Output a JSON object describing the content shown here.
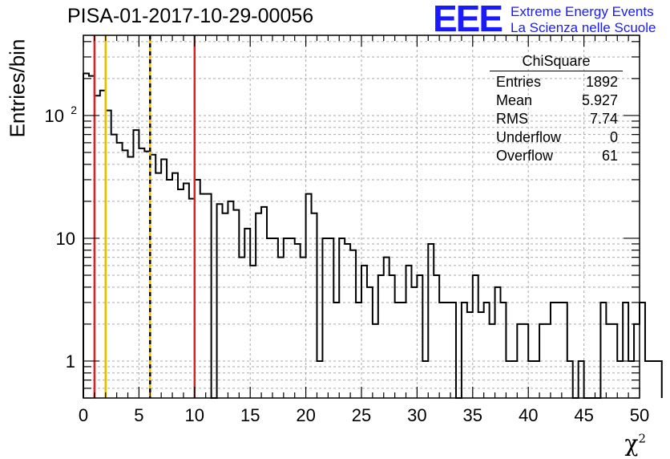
{
  "title": "PISA-01-2017-10-29-00056",
  "logo": {
    "mark": "EEE",
    "line1": "Extreme Energy Events",
    "line2": "La Scienza nelle Scuole"
  },
  "stats": {
    "title": "ChiSquare",
    "rows": [
      {
        "label": "Entries",
        "value": "1892"
      },
      {
        "label": "Mean",
        "value": "5.927"
      },
      {
        "label": "RMS",
        "value": "7.74"
      },
      {
        "label": "Underflow",
        "value": "0"
      },
      {
        "label": "Overflow",
        "value": "61"
      }
    ]
  },
  "chart_data": {
    "type": "histogram",
    "title": "PISA-01-2017-10-29-00056",
    "xlabel": "χ²",
    "ylabel": "Entries/bin",
    "xlim": [
      0,
      50
    ],
    "ylim": [
      0.5,
      450
    ],
    "yscale": "log",
    "bin_width": 0.5,
    "grid": true,
    "x_ticks": [
      "0",
      "5",
      "10",
      "15",
      "20",
      "25",
      "30",
      "35",
      "40",
      "45",
      "50"
    ],
    "y_ticks": [
      {
        "value": 1,
        "label": "1"
      },
      {
        "value": 10,
        "label": "10"
      },
      {
        "value": 100,
        "label": "10",
        "exp": "2"
      }
    ],
    "values": [
      220,
      210,
      145,
      160,
      110,
      70,
      60,
      52,
      46,
      76,
      54,
      51,
      48,
      34,
      44,
      30,
      34,
      25,
      28,
      21,
      30,
      23,
      23,
      0.5,
      19,
      16,
      20,
      17,
      7,
      12,
      6,
      16,
      18,
      10,
      10,
      7,
      10,
      10,
      9,
      7,
      23,
      16,
      1,
      10,
      10,
      3,
      10,
      9,
      8,
      3,
      6,
      4,
      2,
      5,
      7,
      5,
      3,
      3,
      6,
      4,
      5,
      1,
      9,
      5,
      3,
      3,
      3,
      0.5,
      3,
      2.5,
      5,
      2.5,
      3,
      2,
      4,
      3,
      1,
      1,
      2,
      2,
      1,
      1,
      2,
      2,
      3,
      3,
      3,
      1,
      0.5,
      1,
      0.5,
      0.5,
      0.5,
      3,
      2,
      2,
      1,
      3,
      1,
      2,
      3,
      1,
      1,
      1
    ],
    "vertical_lines": [
      {
        "x": 1,
        "color": "#e02020",
        "style": "solid"
      },
      {
        "x": 2,
        "color": "#f0b800",
        "style": "solid"
      },
      {
        "x": 6,
        "color": "#f0b800",
        "style": "dashed-dual"
      },
      {
        "x": 10,
        "color": "#e02020",
        "style": "solid"
      }
    ]
  }
}
